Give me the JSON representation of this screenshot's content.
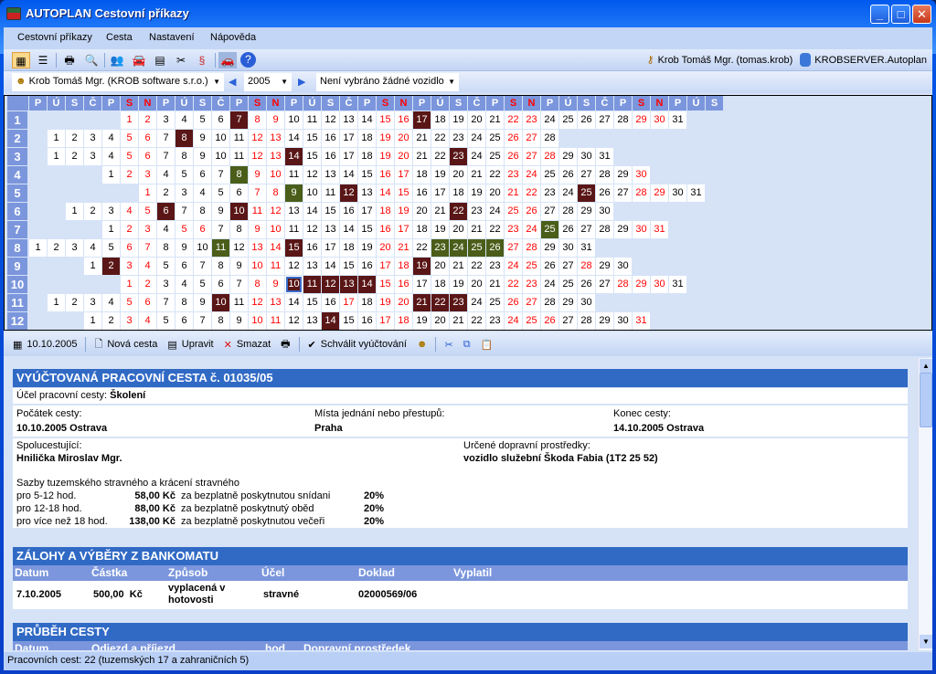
{
  "window": {
    "title": "AUTOPLAN Cestovní příkazy",
    "minimize": "_",
    "maximize": "□",
    "close": "✕"
  },
  "menu": [
    "Cestovní příkazy",
    "Cesta",
    "Nastavení",
    "Nápověda"
  ],
  "toolbar": {
    "icons": [
      "calendar-view-icon",
      "list-view-icon",
      "print-icon",
      "preview-icon",
      "persons-icon",
      "vehicles-icon",
      "table-icon",
      "tools-icon",
      "vehicle-rules-icon",
      "car-icon",
      "help-icon"
    ],
    "user": "Krob Tomáš Mgr. (tomas.krob)",
    "server": "KROBSERVER.Autoplan"
  },
  "selector": {
    "person": "Krob Tomáš Mgr. (KROB software s.r.o.)",
    "year": "2005",
    "vehicle": "Není vybráno žádné vozidlo"
  },
  "calendar": {
    "year": 2005,
    "weekdays": [
      "P",
      "Ú",
      "S",
      "Č",
      "P",
      "S",
      "N"
    ],
    "holidays": [
      [
        1,
        1
      ],
      [
        3,
        28
      ],
      [
        5,
        1
      ],
      [
        5,
        8
      ],
      [
        7,
        5
      ],
      [
        7,
        6
      ],
      [
        9,
        28
      ],
      [
        10,
        28
      ],
      [
        11,
        17
      ],
      [
        12,
        24
      ],
      [
        12,
        25
      ],
      [
        12,
        26
      ]
    ],
    "colors": {
      "domestic": "#5a1616",
      "foreign": "#4a5e1a",
      "weekend": "#ff0000"
    },
    "selected": [
      10,
      10
    ],
    "domestic_trips": [
      [
        1,
        7
      ],
      [
        1,
        17
      ],
      [
        2,
        8
      ],
      [
        3,
        14
      ],
      [
        3,
        23
      ],
      [
        5,
        12
      ],
      [
        5,
        25
      ],
      [
        6,
        6
      ],
      [
        6,
        10
      ],
      [
        6,
        22
      ],
      [
        8,
        15
      ],
      [
        9,
        2
      ],
      [
        9,
        19
      ],
      [
        10,
        10
      ],
      [
        10,
        11
      ],
      [
        10,
        12
      ],
      [
        10,
        13
      ],
      [
        10,
        14
      ],
      [
        11,
        10
      ],
      [
        11,
        21
      ],
      [
        11,
        22
      ],
      [
        11,
        23
      ],
      [
        12,
        14
      ]
    ],
    "foreign_trips": [
      [
        4,
        8
      ],
      [
        5,
        9
      ],
      [
        7,
        25
      ],
      [
        8,
        11
      ],
      [
        8,
        23
      ],
      [
        8,
        24
      ],
      [
        8,
        25
      ],
      [
        8,
        26
      ]
    ]
  },
  "actions": {
    "date": "10.10.2005",
    "new": "Nová cesta",
    "edit": "Upravit",
    "delete": "Smazat",
    "approve": "Schválit vyúčtování"
  },
  "trip": {
    "title": "VYÚČTOVANÁ PRACOVNÍ CESTA č. 01035/05",
    "purpose_label": "Účel pracovní cesty:",
    "purpose": "Školení",
    "start_label": "Počátek cesty:",
    "start": "10.10.2005 Ostrava",
    "places_label": "Místa jednání nebo přestupů:",
    "places": "Praha",
    "end_label": "Konec cesty:",
    "end": "14.10.2005 Ostrava",
    "companions_label": "Spolucestující:",
    "companions": "Hnilička Miroslav Mgr.",
    "transport_label": "Určené dopravní prostředky:",
    "transport": "vozidlo služební Škoda Fabia (1T2 25 52)",
    "rates_title": "Sazby tuzemského stravného a krácení stravného",
    "rates": [
      {
        "period": "pro 5-12 hod.",
        "amount": "58,00 Kč",
        "meal": "za bezplatně poskytnutou snídani",
        "cut": "20%"
      },
      {
        "period": "pro 12-18 hod.",
        "amount": "88,00 Kč",
        "meal": "za bezplatně poskytnutý oběd",
        "cut": "20%"
      },
      {
        "period": "pro více než 18 hod.",
        "amount": "138,00 Kč",
        "meal": "za bezplatně poskytnutou večeři",
        "cut": "20%"
      }
    ]
  },
  "advances": {
    "title": "ZÁLOHY A VÝBĚRY Z BANKOMATU",
    "headers": [
      "Datum",
      "Částka",
      "Způsob",
      "Účel",
      "Doklad",
      "Vyplatil"
    ],
    "rows": [
      [
        "7.10.2005",
        "500,00  Kč",
        "vyplacená v hotovosti",
        "stravné",
        "02000569/06",
        ""
      ]
    ]
  },
  "progress": {
    "title": "PRŮBĚH CESTY",
    "headers": [
      "Datum",
      "Odjezd a příjezd",
      "hod",
      "Dopravní prostředek"
    ]
  },
  "status": "Pracovních cest: 22 (tuzemských 17 a zahraničních 5)"
}
